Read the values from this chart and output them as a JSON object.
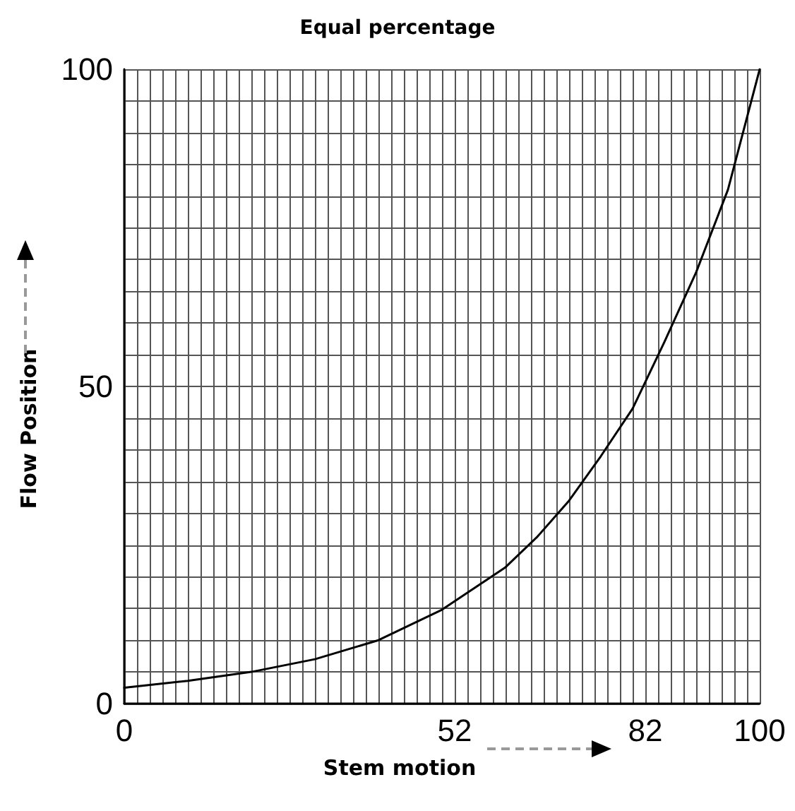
{
  "chart_data": {
    "type": "line",
    "title": "Equal percentage",
    "xlabel": "Stem motion",
    "ylabel": "Flow Position",
    "x": [
      0,
      10,
      20,
      30,
      40,
      50,
      60,
      65,
      70,
      75,
      80,
      85,
      90,
      95,
      100
    ],
    "series": [
      {
        "color": "#000000",
        "values": [
          2.5,
          3.6,
          5,
          7,
          10,
          14.8,
          21.5,
          26.3,
          32,
          39,
          46.5,
          57,
          68,
          81,
          100
        ]
      }
    ],
    "xlim": [
      0,
      100
    ],
    "xticks": [
      0,
      {
        "value": 2,
        "label": null
      },
      {
        "value": 4,
        "label": null
      },
      {
        "value": 6,
        "label": null
      },
      {
        "value": 8,
        "label": null
      },
      {
        "value": 10,
        "label": null
      },
      {
        "value": 12,
        "label": null
      },
      {
        "value": 14,
        "label": null
      },
      {
        "value": 16,
        "label": null
      },
      {
        "value": 18,
        "label": null
      },
      {
        "value": 20,
        "label": null
      },
      {
        "value": 22,
        "label": null
      },
      {
        "value": 24,
        "label": null
      },
      {
        "value": 26,
        "label": null
      },
      {
        "value": 28,
        "label": null
      },
      {
        "value": 30,
        "label": null
      },
      {
        "value": 32,
        "label": null
      },
      {
        "value": 34,
        "label": null
      },
      {
        "value": 36,
        "label": null
      },
      {
        "value": 38,
        "label": null
      },
      {
        "value": 40,
        "label": null
      },
      {
        "value": 42,
        "label": null
      },
      {
        "value": 44,
        "label": null
      },
      {
        "value": 46,
        "label": null
      },
      {
        "value": 48,
        "label": null
      },
      {
        "value": 50,
        "label": null
      },
      52,
      {
        "value": 54,
        "label": null
      },
      {
        "value": 56,
        "label": null
      },
      {
        "value": 58,
        "label": null
      },
      {
        "value": 60,
        "label": null
      },
      {
        "value": 62,
        "label": null
      },
      {
        "value": 64,
        "label": null
      },
      {
        "value": 66,
        "label": null
      },
      {
        "value": 68,
        "label": null
      },
      {
        "value": 70,
        "label": null
      },
      {
        "value": 72,
        "label": null
      },
      {
        "value": 74,
        "label": null
      },
      {
        "value": 76,
        "label": null
      },
      {
        "value": 78,
        "label": null
      },
      {
        "value": 80,
        "label": null
      },
      82,
      {
        "value": 84,
        "label": null
      },
      {
        "value": 86,
        "label": null
      },
      {
        "value": 88,
        "label": null
      },
      {
        "value": 90,
        "label": null
      },
      {
        "value": 92,
        "label": null
      },
      {
        "value": 94,
        "label": null
      },
      {
        "value": 96,
        "label": null
      },
      {
        "value": 98,
        "label": null
      },
      100
    ],
    "ylim": [
      0,
      100
    ],
    "yticks": [
      0,
      {
        "value": 5,
        "label": null
      },
      {
        "value": 10,
        "label": null
      },
      {
        "value": 15,
        "label": null
      },
      {
        "value": 20,
        "label": null
      },
      {
        "value": 25,
        "label": null
      },
      {
        "value": 30,
        "label": null
      },
      {
        "value": 35,
        "label": null
      },
      {
        "value": 40,
        "label": null
      },
      {
        "value": 45,
        "label": null
      },
      50,
      {
        "value": 55,
        "label": null
      },
      {
        "value": 60,
        "label": null
      },
      {
        "value": 65,
        "label": null
      },
      {
        "value": 70,
        "label": null
      },
      {
        "value": 75,
        "label": null
      },
      {
        "value": 80,
        "label": null
      },
      {
        "value": 85,
        "label": null
      },
      {
        "value": 90,
        "label": null
      },
      {
        "value": 95,
        "label": null
      },
      100
    ],
    "grid": true,
    "marker": "none",
    "line_style": "solid"
  }
}
